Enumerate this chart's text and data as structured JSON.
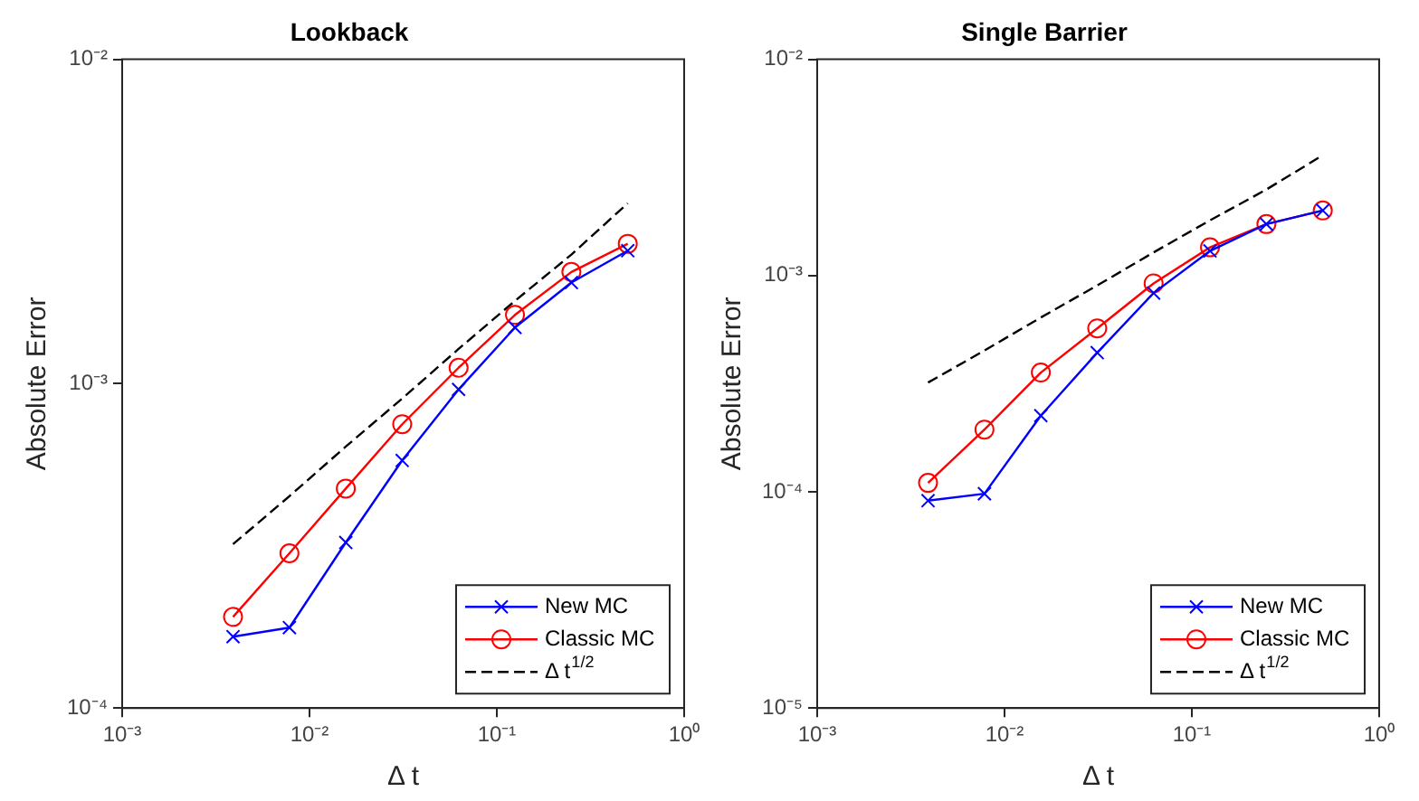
{
  "chart_data": [
    {
      "type": "line",
      "title": "Lookback",
      "xlabel": "Δ t",
      "ylabel": "Absolute Error",
      "log": "xy",
      "grid": false,
      "legend": "bottom right",
      "x": [
        0.00390625,
        0.0078125,
        0.015625,
        0.03125,
        0.0625,
        0.125,
        0.25,
        0.5
      ],
      "xlim": [
        0.001,
        1
      ],
      "xticks": [
        {
          "value": 0.001,
          "label": "10⁻³"
        },
        {
          "value": 0.01,
          "label": "10⁻²"
        },
        {
          "value": 0.1,
          "label": "10⁻¹"
        },
        {
          "value": 1,
          "label": "10⁰"
        }
      ],
      "ylim": [
        0.0001,
        0.01
      ],
      "yticks": [
        {
          "value": 0.0001,
          "label": "10⁻⁴"
        },
        {
          "value": 0.001,
          "label": "10⁻³"
        },
        {
          "value": 0.01,
          "label": "10⁻²"
        }
      ],
      "series": [
        {
          "name": "New MC",
          "color": "#0000ff",
          "marker": "cross",
          "line_style": "solid",
          "values": [
            0.000166,
            0.000177,
            0.000324,
            0.00058,
            0.00096,
            0.00149,
            0.00205,
            0.00257
          ]
        },
        {
          "name": "Classic MC",
          "color": "#ff0000",
          "marker": "circle",
          "line_style": "solid",
          "values": [
            0.000191,
            0.0003,
            0.000475,
            0.00075,
            0.00112,
            0.00163,
            0.00221,
            0.0027
          ]
        },
        {
          "name": "Δ t$^{1/2}$",
          "color": "#000000",
          "marker": "none",
          "line_style": "dashed",
          "values": [
            0.00032,
            0.00045,
            0.00064,
            0.0009,
            0.00128,
            0.0018,
            0.0025,
            0.0036
          ]
        }
      ]
    },
    {
      "type": "line",
      "title": "Single Barrier",
      "xlabel": "Δ t",
      "ylabel": "Absolute Error",
      "log": "xy",
      "grid": false,
      "legend": "bottom right",
      "x": [
        0.00390625,
        0.0078125,
        0.015625,
        0.03125,
        0.0625,
        0.125,
        0.25,
        0.5
      ],
      "xlim": [
        0.001,
        1
      ],
      "xticks": [
        {
          "value": 0.001,
          "label": "10⁻³"
        },
        {
          "value": 0.01,
          "label": "10⁻²"
        },
        {
          "value": 0.1,
          "label": "10⁻¹"
        },
        {
          "value": 1,
          "label": "10⁰"
        }
      ],
      "ylim": [
        1e-05,
        0.01
      ],
      "yticks": [
        {
          "value": 1e-05,
          "label": "10⁻⁵"
        },
        {
          "value": 0.0001,
          "label": "10⁻⁴"
        },
        {
          "value": 0.001,
          "label": "10⁻³"
        },
        {
          "value": 0.01,
          "label": "10⁻²"
        }
      ],
      "series": [
        {
          "name": "New MC",
          "color": "#0000ff",
          "marker": "cross",
          "line_style": "solid",
          "values": [
            9.1e-05,
            9.8e-05,
            0.000225,
            0.00044,
            0.00083,
            0.0013,
            0.00173,
            0.002
          ]
        },
        {
          "name": "Classic MC",
          "color": "#ff0000",
          "marker": "circle",
          "line_style": "solid",
          "values": [
            0.00011,
            0.000194,
            0.000356,
            0.00057,
            0.00092,
            0.00135,
            0.00173,
            0.002
          ]
        },
        {
          "name": "Δ t$^{1/2}$",
          "color": "#000000",
          "marker": "none",
          "line_style": "dashed",
          "values": [
            0.00032,
            0.00045,
            0.00064,
            0.0009,
            0.00128,
            0.0018,
            0.0025,
            0.0036
          ]
        }
      ]
    }
  ]
}
